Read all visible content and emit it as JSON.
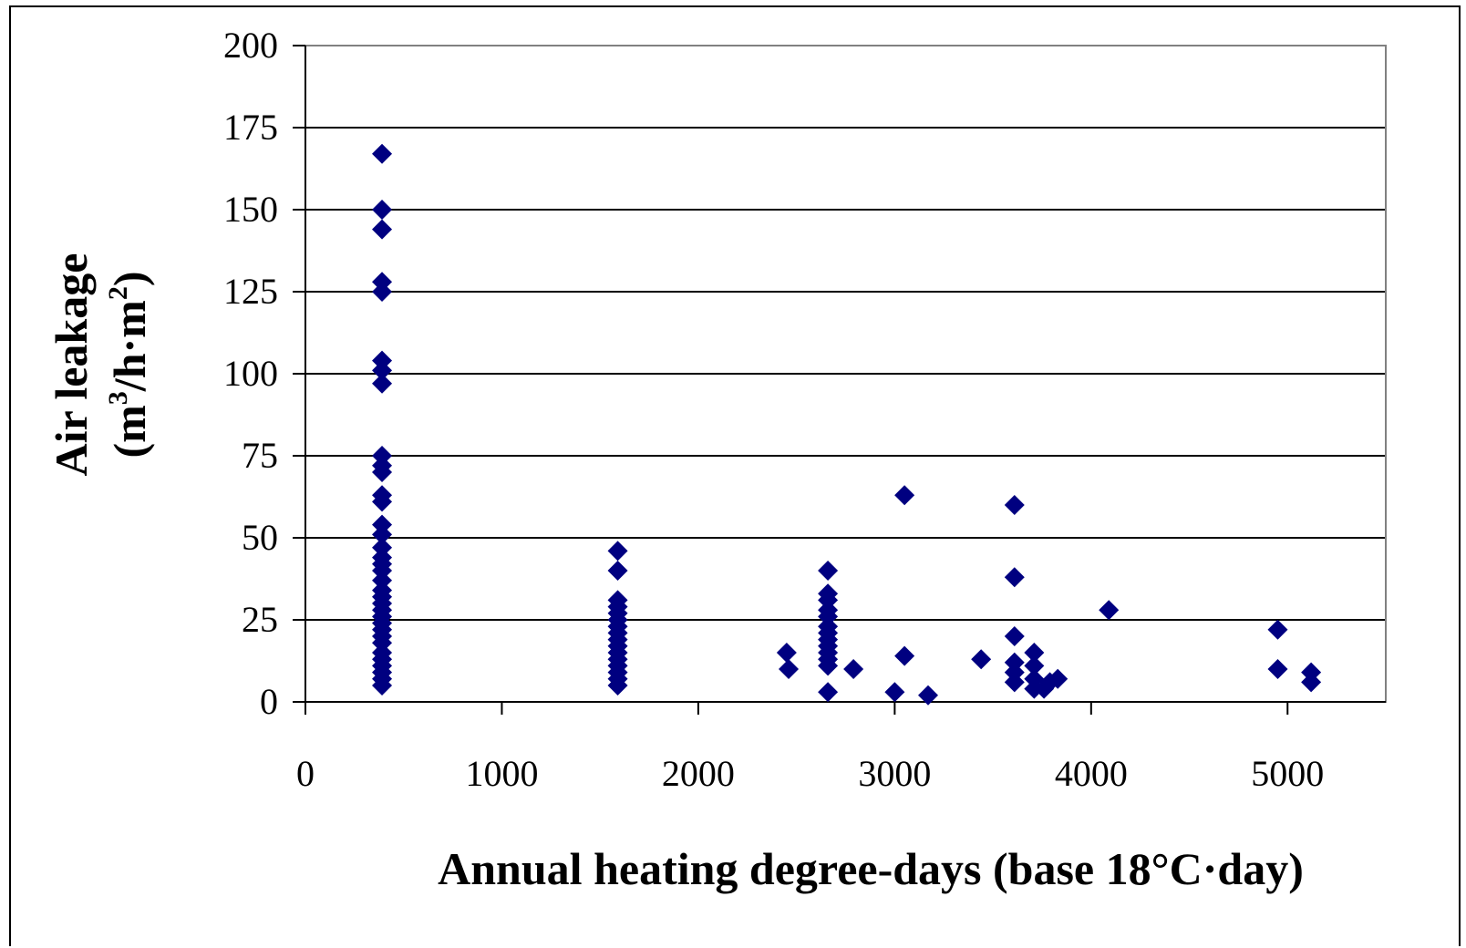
{
  "chart_data": {
    "type": "scatter",
    "xlabel": "Annual heating degree-days (base 18°C·day)",
    "ylabel_line1": "Air leakage",
    "ylabel_line2_prefix": "(m",
    "ylabel_line2_sup1": "3",
    "ylabel_line2_mid": "/h·m",
    "ylabel_line2_sup2": "2",
    "ylabel_line2_suffix": ")",
    "xlim": [
      0,
      5500
    ],
    "ylim": [
      0,
      200
    ],
    "x_ticks": [
      0,
      1000,
      2000,
      3000,
      4000,
      5000
    ],
    "x_tick_labels": [
      "0",
      "1000",
      "2000",
      "3000",
      "4000",
      "5000"
    ],
    "y_ticks": [
      0,
      25,
      50,
      75,
      100,
      125,
      150,
      175,
      200
    ],
    "y_tick_labels": [
      "0",
      "25",
      "50",
      "75",
      "100",
      "125",
      "150",
      "175",
      "200"
    ],
    "grid": "horizontal",
    "marker": "diamond",
    "marker_color": "#000080",
    "points": [
      [
        390,
        167
      ],
      [
        390,
        150
      ],
      [
        390,
        144
      ],
      [
        390,
        128
      ],
      [
        390,
        125
      ],
      [
        390,
        104
      ],
      [
        390,
        101
      ],
      [
        390,
        97
      ],
      [
        390,
        75
      ],
      [
        390,
        72
      ],
      [
        390,
        70
      ],
      [
        390,
        63
      ],
      [
        390,
        61
      ],
      [
        390,
        54
      ],
      [
        390,
        51
      ],
      [
        390,
        47
      ],
      [
        390,
        44
      ],
      [
        390,
        42
      ],
      [
        390,
        40
      ],
      [
        390,
        37
      ],
      [
        390,
        34
      ],
      [
        390,
        32
      ],
      [
        390,
        30
      ],
      [
        390,
        28
      ],
      [
        390,
        26
      ],
      [
        390,
        24
      ],
      [
        390,
        22
      ],
      [
        390,
        20
      ],
      [
        390,
        18
      ],
      [
        390,
        15
      ],
      [
        390,
        13
      ],
      [
        390,
        11
      ],
      [
        390,
        9
      ],
      [
        390,
        7
      ],
      [
        390,
        5
      ],
      [
        1590,
        46
      ],
      [
        1590,
        40
      ],
      [
        1590,
        31
      ],
      [
        1590,
        29
      ],
      [
        1590,
        27
      ],
      [
        1590,
        25
      ],
      [
        1590,
        23
      ],
      [
        1590,
        21
      ],
      [
        1590,
        19
      ],
      [
        1590,
        17
      ],
      [
        1590,
        15
      ],
      [
        1590,
        13
      ],
      [
        1590,
        11
      ],
      [
        1590,
        9
      ],
      [
        1590,
        7
      ],
      [
        1590,
        5
      ],
      [
        2450,
        15
      ],
      [
        2460,
        10
      ],
      [
        2660,
        40
      ],
      [
        2660,
        33
      ],
      [
        2660,
        31
      ],
      [
        2660,
        28
      ],
      [
        2660,
        26
      ],
      [
        2660,
        23
      ],
      [
        2660,
        21
      ],
      [
        2660,
        19
      ],
      [
        2660,
        17
      ],
      [
        2660,
        15
      ],
      [
        2660,
        13
      ],
      [
        2660,
        11
      ],
      [
        2660,
        3
      ],
      [
        2790,
        10
      ],
      [
        3000,
        3
      ],
      [
        3050,
        63
      ],
      [
        3050,
        14
      ],
      [
        3170,
        2
      ],
      [
        3440,
        13
      ],
      [
        3610,
        60
      ],
      [
        3610,
        38
      ],
      [
        3610,
        20
      ],
      [
        3610,
        12
      ],
      [
        3610,
        9
      ],
      [
        3610,
        6
      ],
      [
        3710,
        15
      ],
      [
        3710,
        11
      ],
      [
        3710,
        7
      ],
      [
        3710,
        4
      ],
      [
        3760,
        4
      ],
      [
        3790,
        6
      ],
      [
        3830,
        7
      ],
      [
        4090,
        28
      ],
      [
        4950,
        22
      ],
      [
        4950,
        10
      ],
      [
        5120,
        9
      ],
      [
        5120,
        6
      ]
    ]
  }
}
